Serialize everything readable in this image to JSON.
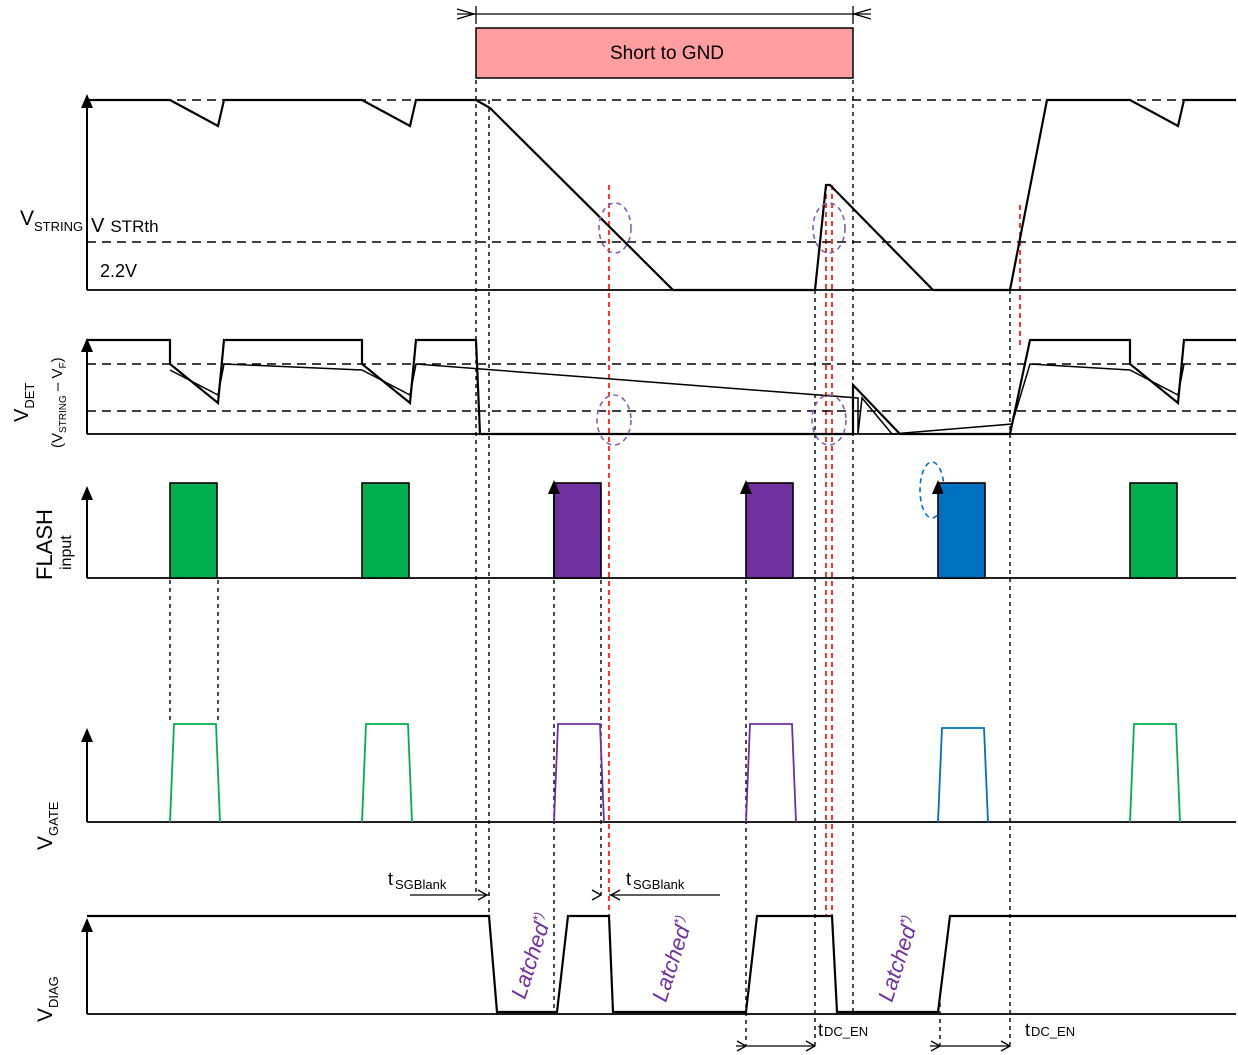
{
  "banner": {
    "label": "Short to GND",
    "color": "#ff9ea0"
  },
  "signals": {
    "vstring": {
      "main": "V",
      "sub": "STRING"
    },
    "vdet": {
      "main": "V",
      "sub": "DET",
      "paren_open": "(V",
      "paren_sub": "STRING",
      "paren_mid": " – V",
      "paren_sub2": "F",
      "paren_close": ")"
    },
    "flash": {
      "main": "FLASH",
      "sub": "input"
    },
    "vgate": {
      "main": "V",
      "sub": "GATE"
    },
    "vdiag": {
      "main": "V",
      "sub": "DIAG"
    }
  },
  "thresholds": {
    "vstrth_main": "V",
    "vstrth_sub": "STRth",
    "v22": "2.2V"
  },
  "timings": {
    "tsgblank1_t": "t",
    "tsgblank1_sub": "SGBlank",
    "tsgblank2_t": "t",
    "tsgblank2_sub": "SGBlank",
    "tdcen1_t": "t",
    "tdcen1_sub": "DC_EN",
    "tdcen2_t": "t",
    "tdcen2_sub": "DC_EN"
  },
  "latched": {
    "l1": "Latched",
    "l2": "Latched",
    "l3": "Latched",
    "sup": "*)"
  },
  "colors": {
    "green": "#00b050",
    "purple": "#7030a0",
    "blue": "#0070c0",
    "red_marker": "#ff0000",
    "dash_circle_purple": "#8060b0",
    "dash_circle_blue": "#0070c0"
  }
}
